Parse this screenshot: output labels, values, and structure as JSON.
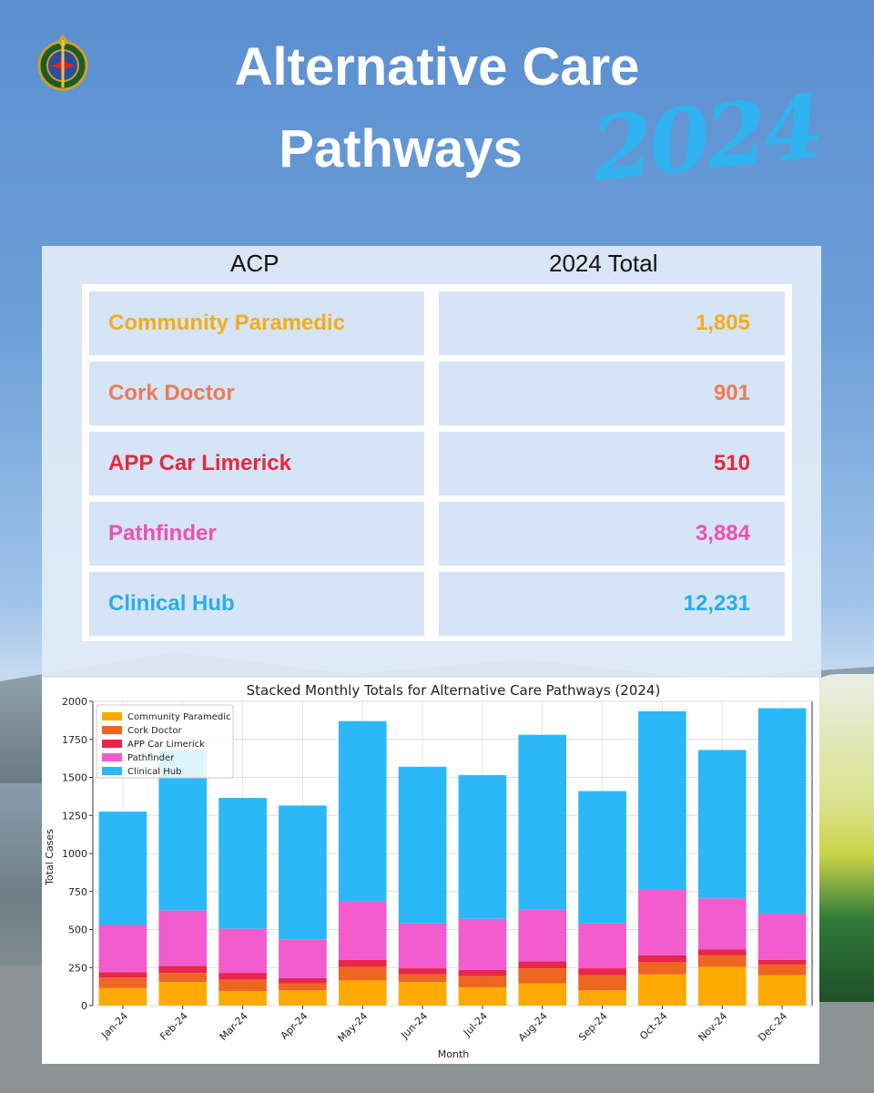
{
  "header": {
    "title_line1": "Alternative Care",
    "title_line2": "Pathways",
    "year": "2024"
  },
  "table": {
    "headers": [
      "ACP",
      "2024 Total"
    ],
    "rows": [
      {
        "name": "Community Paramedic",
        "total": "1,805",
        "color": "#f2ae1c"
      },
      {
        "name": "Cork Doctor",
        "total": "901",
        "color": "#ee7a55"
      },
      {
        "name": "APP Car Limerick",
        "total": "510",
        "color": "#e8283c"
      },
      {
        "name": "Pathfinder",
        "total": "3,884",
        "color": "#ee4fb3"
      },
      {
        "name": "Clinical Hub",
        "total": "12,231",
        "color": "#29aee8"
      }
    ]
  },
  "chart_data": {
    "type": "bar",
    "stacked": true,
    "title": "Stacked Monthly Totals for Alternative Care Pathways (2024)",
    "xlabel": "Month",
    "ylabel": "Total Cases",
    "ylim": [
      0,
      2000
    ],
    "yticks": [
      0,
      250,
      500,
      750,
      1000,
      1250,
      1500,
      1750,
      2000
    ],
    "grid": true,
    "legend_position": "top-left",
    "categories": [
      "Jan-24",
      "Feb-24",
      "Mar-24",
      "Apr-24",
      "May-24",
      "Jun-24",
      "Jul-24",
      "Aug-24",
      "Sep-24",
      "Oct-24",
      "Nov-24",
      "Dec-24"
    ],
    "series": [
      {
        "name": "Community Paramedic",
        "color": "#ffaa00",
        "values": [
          115,
          155,
          95,
          100,
          165,
          155,
          120,
          145,
          100,
          205,
          255,
          200
        ]
      },
      {
        "name": "Cork Doctor",
        "color": "#ee6622",
        "values": [
          70,
          60,
          75,
          45,
          90,
          50,
          75,
          100,
          100,
          80,
          75,
          70
        ]
      },
      {
        "name": "APP Car Limerick",
        "color": "#e8254a",
        "values": [
          35,
          45,
          45,
          35,
          45,
          40,
          40,
          45,
          45,
          45,
          40,
          30
        ]
      },
      {
        "name": "Pathfinder",
        "color": "#f25ccc",
        "values": [
          310,
          365,
          290,
          255,
          385,
          295,
          335,
          340,
          295,
          430,
          335,
          305
        ]
      },
      {
        "name": "Clinical Hub",
        "color": "#2ab8f8",
        "values": [
          745,
          1055,
          860,
          880,
          1185,
          1030,
          945,
          1150,
          870,
          1175,
          975,
          1350
        ]
      }
    ]
  }
}
